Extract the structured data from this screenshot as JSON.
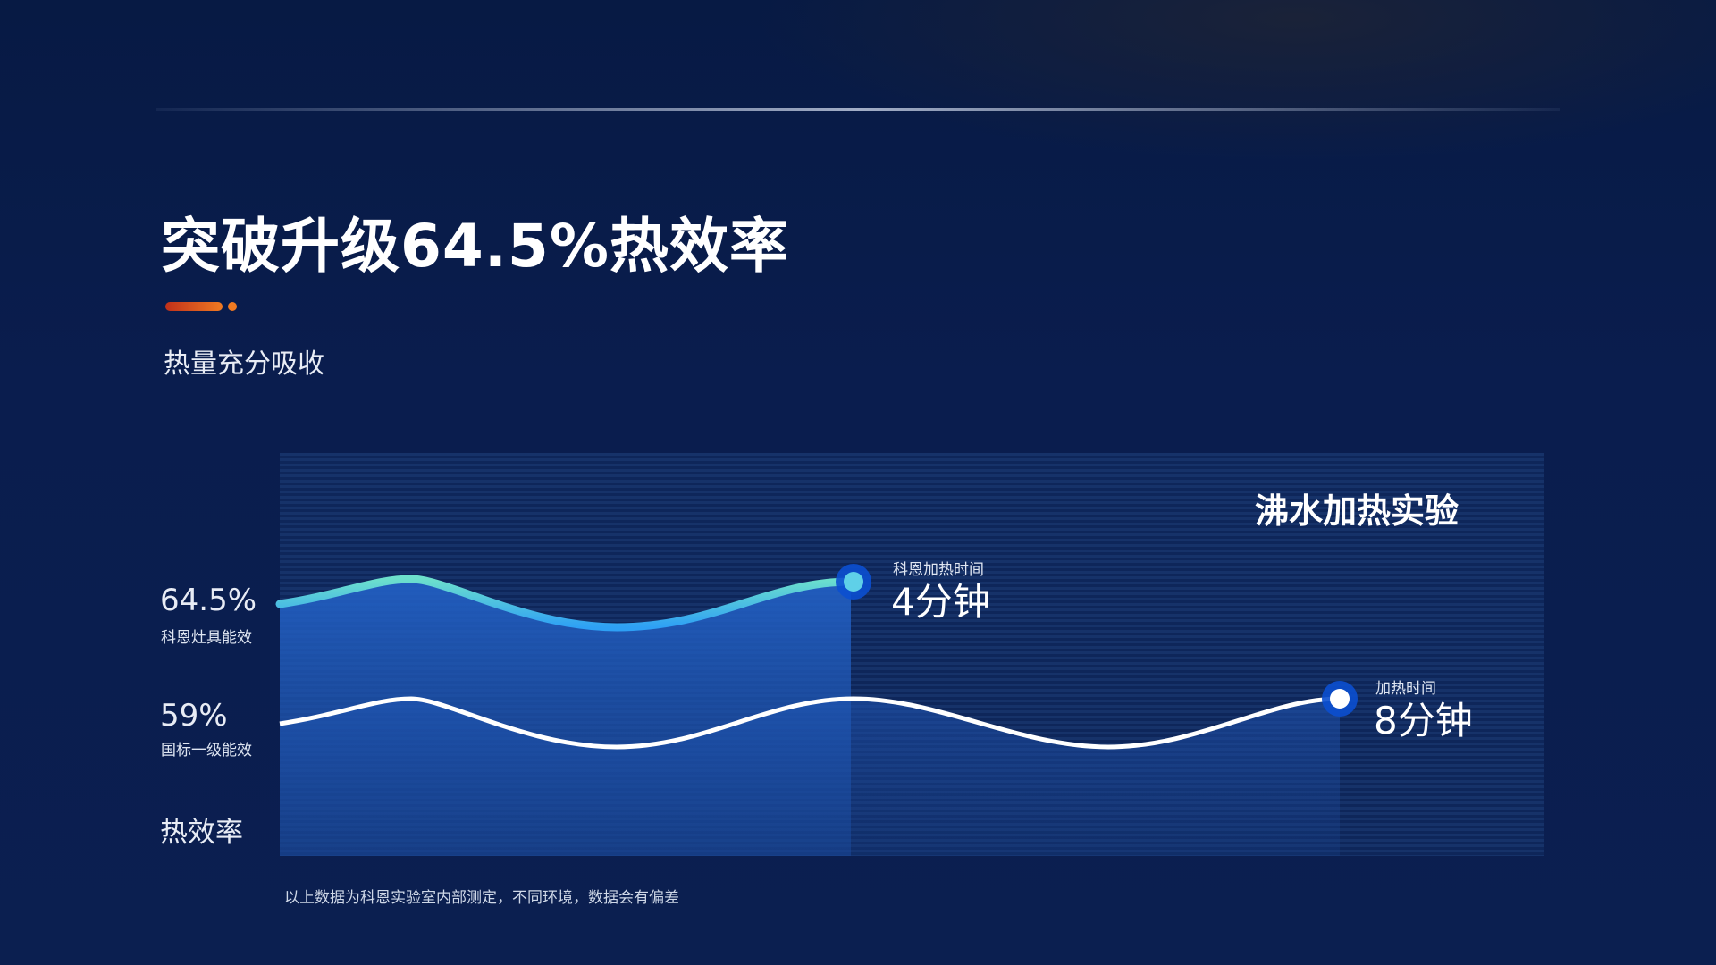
{
  "header": {
    "title": "突破升级64.5%热效率",
    "subtitle": "热量充分吸收"
  },
  "chart_data": {
    "type": "area",
    "title": "沸水加热实验",
    "ylabel": "热效率",
    "series": [
      {
        "name": "科恩灶具能效",
        "value_label": "64.5%",
        "value": 64.5,
        "time_label": "科恩加热时间",
        "time_value": "4分钟",
        "minutes": 4,
        "color": "#5fd8d0"
      },
      {
        "name": "国标一级能效",
        "value_label": "59%",
        "value": 59,
        "time_label": "加热时间",
        "time_value": "8分钟",
        "minutes": 8,
        "color": "#ffffff"
      }
    ],
    "grid": false
  },
  "footnote": "以上数据为科恩实验室内部测定，不同环境，数据会有偏差",
  "colors": {
    "background": "#0a1d4e",
    "accent": "#f07a22",
    "fill": "#1f57b8"
  }
}
